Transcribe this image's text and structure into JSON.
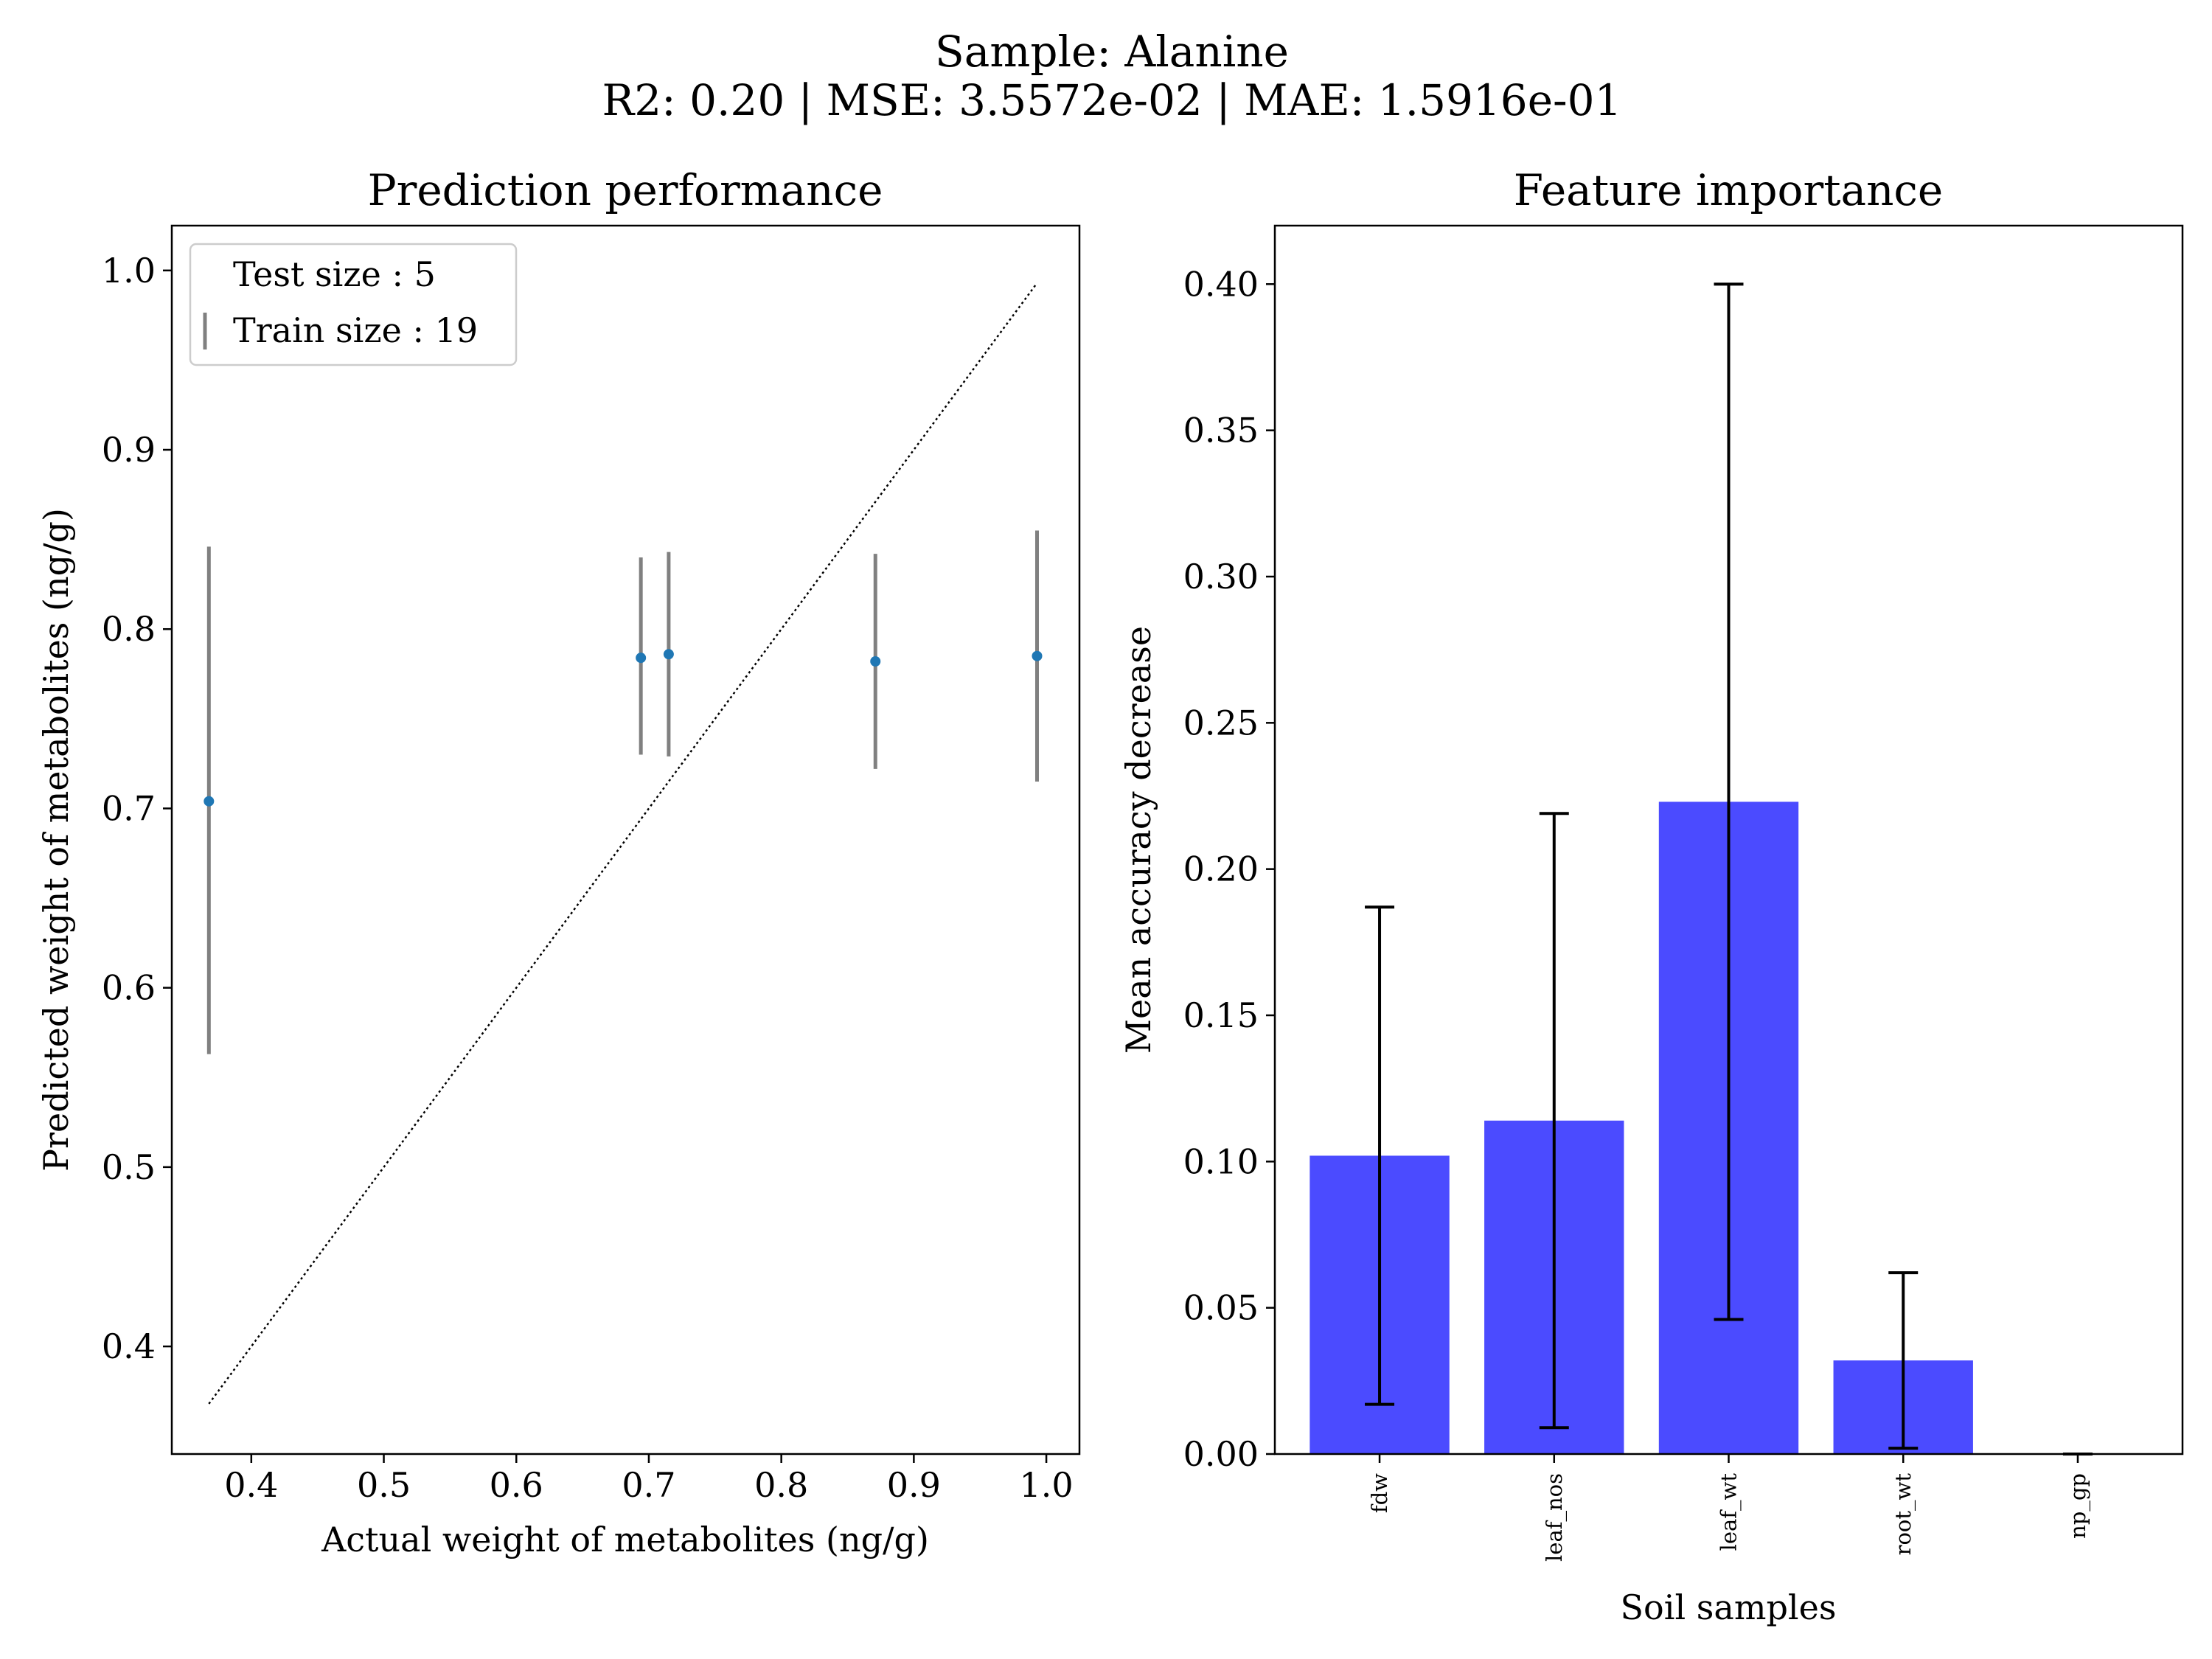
{
  "figure": {
    "title_line1": "Sample: Alanine",
    "title_line2": "R2: 0.20 | MSE: 3.5572e-02 | MAE: 1.5916e-01"
  },
  "chart_data": [
    {
      "type": "scatter",
      "title": "Prediction performance",
      "xlabel": "Actual weight of metabolites (ng/g)",
      "ylabel": "Predicted weight of metabolites (ng/g)",
      "xlim": [
        0.34,
        1.025
      ],
      "ylim": [
        0.34,
        1.025
      ],
      "xticks": [
        "0.4",
        "0.5",
        "0.6",
        "0.7",
        "0.8",
        "0.9",
        "1.0"
      ],
      "yticks": [
        "0.4",
        "0.5",
        "0.6",
        "0.7",
        "0.8",
        "0.9",
        "1.0"
      ],
      "legend": {
        "placement": "upper-left",
        "entries": [
          "Test size : 5",
          "Train size : 19"
        ]
      },
      "points": [
        {
          "x": 0.368,
          "y": 0.704,
          "err_low": 0.563,
          "err_high": 0.846
        },
        {
          "x": 0.694,
          "y": 0.784,
          "err_low": 0.73,
          "err_high": 0.84
        },
        {
          "x": 0.715,
          "y": 0.786,
          "err_low": 0.729,
          "err_high": 0.843
        },
        {
          "x": 0.871,
          "y": 0.782,
          "err_low": 0.722,
          "err_high": 0.842
        },
        {
          "x": 0.993,
          "y": 0.785,
          "err_low": 0.715,
          "err_high": 0.855
        }
      ],
      "identity_line": {
        "from": 0.368,
        "to": 0.993
      },
      "colors": {
        "points": "#1f77b4",
        "errorbars": "#808080",
        "line": "#000000"
      }
    },
    {
      "type": "bar",
      "title": "Feature importance",
      "xlabel": "Soil samples",
      "ylabel": "Mean accuracy decrease",
      "ylim": [
        0,
        0.42
      ],
      "yticks": [
        "0.00",
        "0.05",
        "0.10",
        "0.15",
        "0.20",
        "0.25",
        "0.30",
        "0.35",
        "0.40"
      ],
      "categories": [
        "fdw",
        "leaf_nos",
        "leaf_wt",
        "root_wt",
        "np_gp"
      ],
      "values": [
        0.102,
        0.114,
        0.223,
        0.032,
        0.0
      ],
      "errors": [
        0.085,
        0.105,
        0.177,
        0.03,
        0.0
      ],
      "colors": {
        "bars": "#4b4bff",
        "errorbars": "#000000"
      }
    }
  ]
}
